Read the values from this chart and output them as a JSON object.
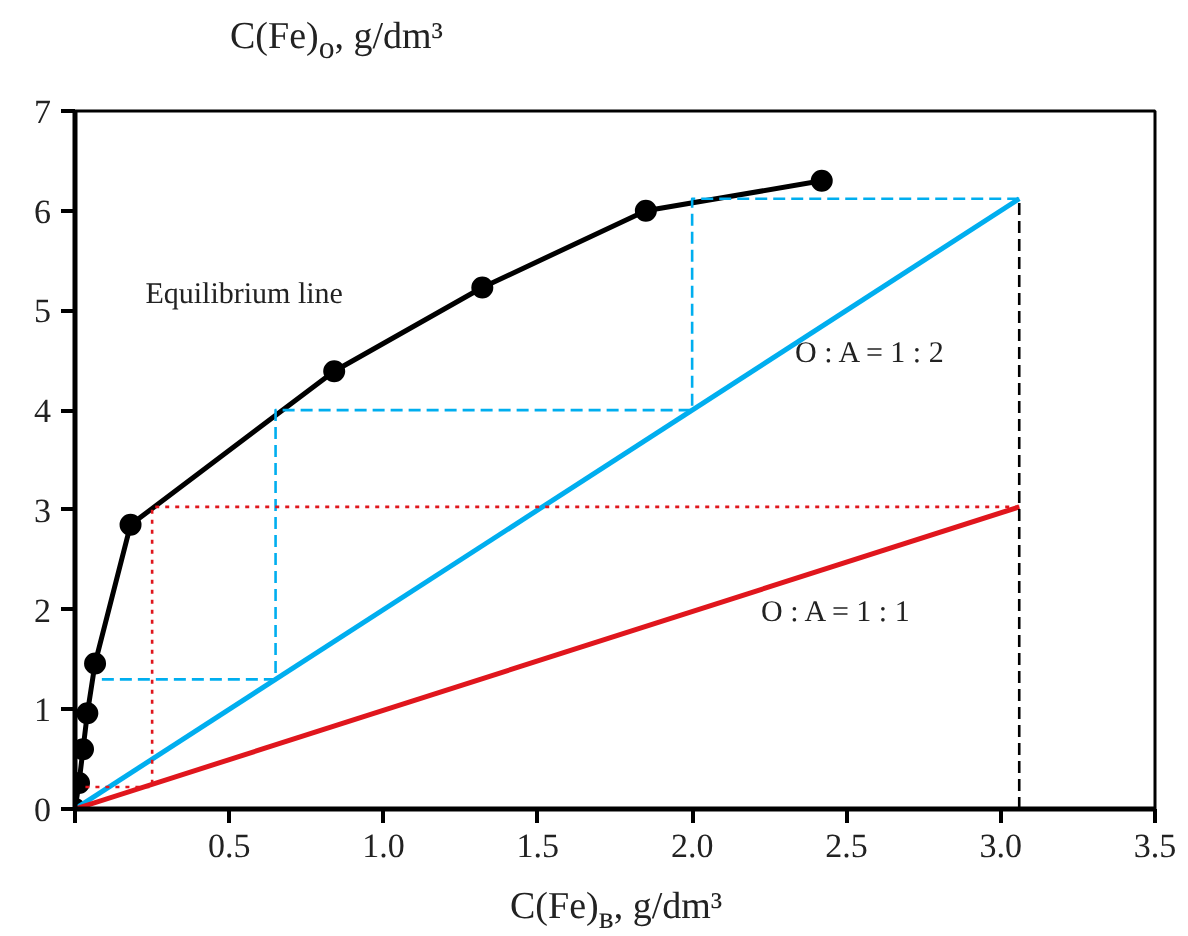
{
  "chart_data": {
    "type": "line",
    "xlabel": "C(Fe)$_{в}$, g/dm³",
    "ylabel": "C(Fe)$_{o}$, g/dm³",
    "xlim": [
      0,
      3.5
    ],
    "ylim": [
      0,
      7
    ],
    "xticks": [
      {
        "value": 0,
        "label": null
      },
      0.5,
      {
        "value": 1,
        "label": "1.0"
      },
      1.5,
      {
        "value": 2,
        "label": "2.0"
      },
      2.5,
      {
        "value": 3,
        "label": "3.0"
      },
      3.5
    ],
    "yticks": [
      0,
      1,
      2,
      3,
      4,
      5,
      6,
      7
    ],
    "grid": false,
    "series": [
      {
        "color": "#000000",
        "marker": "circle",
        "line_style": "solid",
        "x": [
          0,
          0.013,
          0.026,
          0.04,
          0.065,
          0.18,
          0.84,
          1.32,
          1.85,
          2.42
        ],
        "values": [
          0,
          0.26,
          0.6,
          0.96,
          1.46,
          2.85,
          4.39,
          5.23,
          6.0,
          6.3
        ]
      },
      {
        "color": "#00aeef",
        "marker": "none",
        "line_style": "solid",
        "x": [
          0,
          3.06
        ],
        "values": [
          0,
          6.12
        ]
      },
      {
        "color": "#e0161d",
        "marker": "none",
        "line_style": "solid",
        "x": [
          0,
          3.06
        ],
        "values": [
          0,
          3.03
        ]
      },
      {
        "color": "#00aeef",
        "marker": "none",
        "line_style": "dashed",
        "x": [
          3.06,
          2.0,
          2.0,
          0.65,
          0.65,
          0.07
        ],
        "values": [
          6.12,
          6.12,
          4.0,
          4.0,
          1.3,
          1.3
        ]
      },
      {
        "color": "#e0161d",
        "marker": "none",
        "line_style": "dotted",
        "x": [
          3.06,
          0.25,
          0.25,
          0.03
        ],
        "values": [
          3.03,
          3.03,
          0.22,
          0.22
        ]
      },
      {
        "color": "#000000",
        "marker": "none",
        "line_style": "dashed",
        "x": [
          3.06,
          3.06
        ],
        "values": [
          0,
          6.12
        ]
      }
    ],
    "annotations": [
      "Equilibrium line",
      "O : A = 1 : 2",
      "O : A = 1 : 1"
    ]
  }
}
